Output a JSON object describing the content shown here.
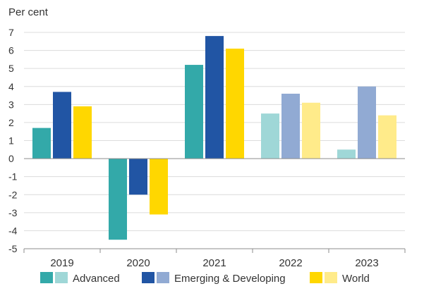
{
  "chart_data": {
    "type": "bar",
    "title": "",
    "ylabel": "Per cent",
    "xlabel": "",
    "ylim": [
      -5,
      7
    ],
    "yticks": [
      -5,
      -4,
      -3,
      -2,
      -1,
      0,
      1,
      2,
      3,
      4,
      5,
      6,
      7
    ],
    "categories": [
      "2019",
      "2020",
      "2021",
      "2022",
      "2023"
    ],
    "projected_from_category": "2022",
    "grid": true,
    "legend_position": "bottom",
    "series": [
      {
        "name": "Advanced",
        "color": "#33a9a9",
        "projection_color": "#9fd7d7",
        "values": [
          1.7,
          -4.5,
          5.2,
          2.5,
          0.5
        ]
      },
      {
        "name": "Emerging & Developing",
        "color": "#2155a4",
        "projection_color": "#91aad3",
        "values": [
          3.7,
          -2.0,
          6.8,
          3.6,
          4.0
        ]
      },
      {
        "name": "World",
        "color": "#ffd700",
        "projection_color": "#ffeb8a",
        "values": [
          2.9,
          -3.1,
          6.1,
          3.1,
          2.4
        ]
      }
    ]
  }
}
